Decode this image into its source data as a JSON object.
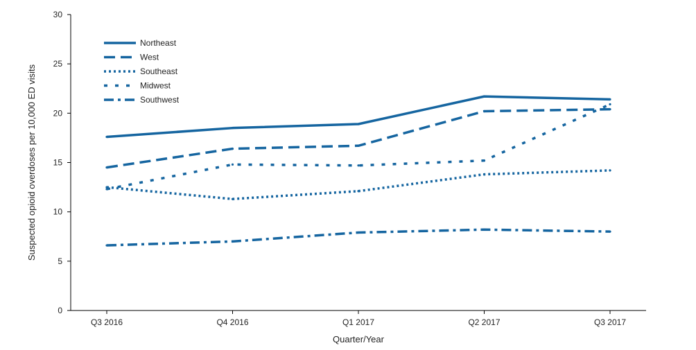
{
  "chart_data": {
    "type": "line",
    "title": "",
    "xlabel": "Quarter/Year",
    "ylabel": "Suspected opioid overdoses per 10,000 ED visits",
    "categories": [
      "Q3 2016",
      "Q4 2016",
      "Q1 2017",
      "Q2 2017",
      "Q3 2017"
    ],
    "ylim": [
      0,
      30
    ],
    "yticks": [
      "0",
      "5",
      "10",
      "15",
      "20",
      "25",
      "30"
    ],
    "grid": false,
    "legend_position": "top-left",
    "color": "#1565a0",
    "series": [
      {
        "name": "Northeast",
        "style": "solid",
        "values": [
          17.6,
          18.5,
          18.9,
          21.7,
          21.4
        ]
      },
      {
        "name": "West",
        "style": "dashed",
        "values": [
          14.5,
          16.4,
          16.7,
          20.2,
          20.4
        ]
      },
      {
        "name": "Southeast",
        "style": "dotted",
        "values": [
          12.5,
          11.3,
          12.1,
          13.8,
          14.2
        ]
      },
      {
        "name": "Midwest",
        "style": "sparse-dotted",
        "values": [
          12.3,
          14.8,
          14.7,
          15.2,
          20.9
        ]
      },
      {
        "name": "Southwest",
        "style": "dash-dot",
        "values": [
          6.6,
          7.0,
          7.9,
          8.2,
          8.0
        ]
      }
    ]
  }
}
